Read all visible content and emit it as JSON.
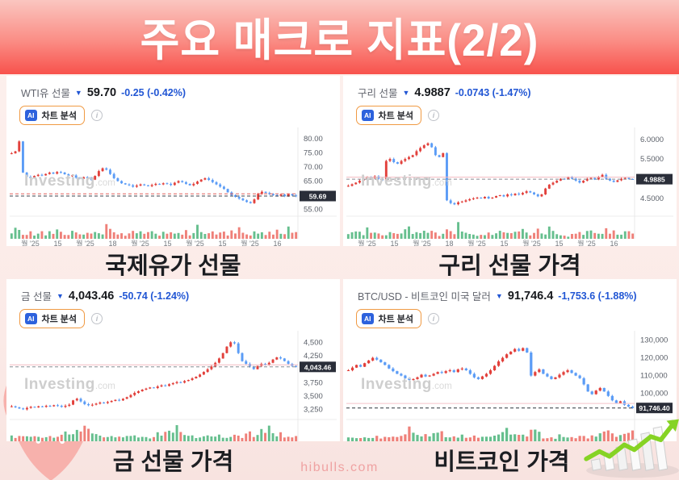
{
  "page": {
    "title": "주요 매크로 지표(2/2)",
    "site": "hibulls.com",
    "watermark": "Investing",
    "watermark_suffix": ".com"
  },
  "icons": {
    "down_arrow": "▼",
    "info": "i"
  },
  "ai": {
    "badge": "AI",
    "label": "차트 분석"
  },
  "colors": {
    "header_gradient_top": "#fac6c0",
    "header_gradient_bottom": "#f8524c",
    "candle_up": "#e2413c",
    "candle_down": "#5b9cf6",
    "vol_up": "#66bf8e",
    "vol_down": "#ef8079",
    "change_negative": "#2156d4",
    "ai_border": "#f09a43",
    "ai_badge_bg": "#2d62dd",
    "badge_bg": "#2a2e39",
    "brand_pink": "#efa2a2"
  },
  "chart_data": [
    {
      "type": "candlestick",
      "symbol": "WTI유 선물",
      "price": "59.70",
      "change": "-0.25 (-0.42%)",
      "caption": "국제유가 선물",
      "ylim": [
        54,
        82.5
      ],
      "y_ticks": [
        {
          "v": 80,
          "label": "80.00"
        },
        {
          "v": 75,
          "label": "75.00"
        },
        {
          "v": 70,
          "label": "70.00"
        },
        {
          "v": 65,
          "label": "65.00"
        },
        {
          "v": 55,
          "label": "55.00"
        }
      ],
      "last_value": 59.69,
      "last_label": "59.69",
      "last_line_color": "#3c414b",
      "lines": [
        {
          "v": 60.5,
          "color": "#e2625f",
          "dash": true
        }
      ],
      "closes": [
        74.8,
        75.5,
        79.0,
        68.0,
        66.5,
        66.0,
        66.8,
        67.2,
        67.0,
        67.5,
        68.0,
        67.6,
        68.2,
        68.0,
        67.4,
        66.8,
        67.0,
        66.2,
        65.8,
        66.4,
        66.0,
        65.5,
        66.8,
        68.5,
        69.5,
        69.0,
        67.5,
        66.0,
        65.0,
        64.2,
        63.8,
        63.5,
        63.0,
        63.4,
        63.8,
        63.5,
        63.2,
        63.6,
        64.0,
        63.8,
        64.2,
        64.0,
        63.6,
        64.4,
        65.0,
        64.6,
        64.0,
        63.5,
        64.0,
        64.8,
        65.5,
        66.0,
        65.4,
        64.6,
        63.8,
        63.0,
        62.2,
        61.0,
        60.0,
        59.4,
        58.8,
        58.2,
        57.6,
        57.2,
        58.5,
        60.5,
        61.2,
        60.8,
        60.4,
        60.0,
        59.8,
        60.2,
        59.6,
        60.4,
        59.9,
        59.7
      ],
      "volume_profile": [
        0.3,
        0.95,
        0.55,
        0.35,
        0.3,
        0.4,
        0.28,
        0.33,
        0.45,
        0.3,
        0.5,
        0.38,
        0.6,
        0.42,
        0.3,
        0.25,
        0.48,
        0.35,
        0.35,
        0.35,
        0.4,
        0.3,
        0.55,
        0.3
      ],
      "x_labels": [
        "월 '25",
        "15",
        "월 '25",
        "18",
        "월 '25",
        "15",
        "월 '25",
        "15",
        "월 '25",
        "16"
      ],
      "seed": 3
    },
    {
      "type": "candlestick",
      "symbol": "구리 선물",
      "price": "4.9887",
      "change": "-0.0743 (-1.47%)",
      "caption": "구리 선물 가격",
      "ylim": [
        4.15,
        6.2
      ],
      "y_ticks": [
        {
          "v": 6.0,
          "label": "6.0000"
        },
        {
          "v": 5.5,
          "label": "5.5000"
        },
        {
          "v": 4.5,
          "label": "4.5000"
        }
      ],
      "last_value": 4.9885,
      "last_label": "4.9885",
      "last_line_color": "#868b92",
      "lines": [
        {
          "v": 5.04,
          "color": "#f2b9c0",
          "dash": false
        }
      ],
      "closes": [
        4.82,
        4.86,
        4.9,
        4.95,
        5.0,
        5.05,
        5.02,
        5.06,
        5.0,
        4.96,
        5.45,
        5.5,
        5.42,
        5.38,
        5.45,
        5.5,
        5.55,
        5.6,
        5.7,
        5.78,
        5.85,
        5.9,
        5.8,
        5.6,
        5.55,
        5.65,
        4.45,
        4.38,
        4.35,
        4.4,
        4.42,
        4.45,
        4.48,
        4.5,
        4.52,
        4.5,
        4.54,
        4.5,
        4.52,
        4.56,
        4.58,
        4.55,
        4.6,
        4.58,
        4.62,
        4.6,
        4.64,
        4.68,
        4.65,
        4.6,
        4.55,
        4.6,
        4.75,
        4.85,
        4.9,
        4.95,
        5.0,
        4.98,
        5.05,
        5.0,
        4.95,
        4.9,
        4.95,
        5.0,
        5.02,
        4.98,
        5.05,
        5.1,
        5.0,
        4.95,
        4.92,
        4.96,
        5.0,
        5.02,
        4.99,
        4.9885
      ],
      "volume_profile": [
        0.25,
        0.45,
        0.65,
        0.4,
        0.3,
        0.95,
        0.5,
        0.35,
        0.3,
        0.25,
        0.2,
        0.35,
        0.3,
        0.4,
        0.3,
        0.5,
        0.7,
        0.45,
        0.35,
        0.3,
        0.55,
        0.4,
        0.6,
        0.35
      ],
      "x_labels": [
        "월 '25",
        "15",
        "월 '25",
        "18",
        "월 '25",
        "15",
        "월 '25",
        "15",
        "월 '25",
        "16"
      ],
      "seed": 7
    },
    {
      "type": "candlestick",
      "symbol": "금 선물",
      "price": "4,043.46",
      "change": "-50.74 (-1.24%)",
      "caption": "금 선물 가격",
      "ylim": [
        3140,
        4640
      ],
      "y_ticks": [
        {
          "v": 4500,
          "label": "4,500"
        },
        {
          "v": 4250,
          "label": "4,250"
        },
        {
          "v": 3750,
          "label": "3,750"
        },
        {
          "v": 3500,
          "label": "3,500"
        },
        {
          "v": 3250,
          "label": "3,250"
        }
      ],
      "last_value": 4043.46,
      "last_label": "4,043.46",
      "last_line_color": "#868b92",
      "lines": [
        {
          "v": 4080,
          "color": "#f2b9c0",
          "dash": false
        }
      ],
      "closes": [
        3310,
        3290,
        3270,
        3255,
        3280,
        3300,
        3290,
        3310,
        3300,
        3320,
        3310,
        3330,
        3320,
        3300,
        3320,
        3340,
        3420,
        3450,
        3400,
        3350,
        3330,
        3340,
        3360,
        3380,
        3370,
        3390,
        3410,
        3430,
        3420,
        3450,
        3480,
        3520,
        3560,
        3590,
        3620,
        3640,
        3660,
        3650,
        3680,
        3700,
        3690,
        3720,
        3740,
        3760,
        3750,
        3780,
        3800,
        3830,
        3860,
        3900,
        3950,
        4000,
        4050,
        4120,
        4200,
        4300,
        4420,
        4500,
        4480,
        4300,
        4150,
        4100,
        4050,
        4000,
        4060,
        4100,
        4080,
        4120,
        4180,
        4220,
        4200,
        4150,
        4100,
        4060,
        4043.46
      ],
      "volume_profile": [
        0.35,
        0.3,
        0.45,
        0.4,
        0.3,
        0.35,
        0.5,
        0.4,
        0.35,
        0.3,
        0.4,
        0.35,
        0.3,
        0.45,
        0.55,
        0.4,
        0.65,
        0.75,
        0.6,
        0.95,
        0.7,
        0.45,
        0.55,
        0.4
      ],
      "x_labels": [
        "월 '25",
        "15",
        "월 '25",
        "18",
        "월 '25",
        "15",
        "월 '25",
        "15",
        "월 '25",
        "16"
      ],
      "seed": 11
    },
    {
      "type": "candlestick",
      "symbol": "BTC/USD - 비트코인 미국 달러",
      "price": "91,746.4",
      "change": "-1,753.6 (-1.88%)",
      "caption": "비트코인 가격",
      "ylim": [
        87500,
        133000
      ],
      "y_ticks": [
        {
          "v": 130000,
          "label": "130,000"
        },
        {
          "v": 120000,
          "label": "120,000"
        },
        {
          "v": 110000,
          "label": "110,000"
        },
        {
          "v": 100000,
          "label": "100,000"
        }
      ],
      "last_value": 91746.4,
      "last_label": "91,746.40",
      "last_line_color": "#2e333c",
      "lines": [
        {
          "v": 94300,
          "color": "#f4c3c9",
          "dash": false
        }
      ],
      "closes": [
        113000,
        114500,
        116000,
        115000,
        117000,
        118500,
        120000,
        119000,
        117500,
        116000,
        114000,
        112500,
        111000,
        110000,
        108500,
        107500,
        108000,
        109000,
        110500,
        109500,
        110000,
        111000,
        112000,
        111500,
        112500,
        113000,
        112000,
        113500,
        114000,
        113000,
        111000,
        109000,
        108000,
        109500,
        111000,
        113000,
        115500,
        118000,
        120000,
        122000,
        123500,
        125000,
        124000,
        125500,
        123000,
        110000,
        112000,
        113500,
        111000,
        109500,
        108000,
        109000,
        110500,
        112000,
        113000,
        111500,
        110000,
        108500,
        105000,
        101000,
        99500,
        101500,
        103000,
        101000,
        98500,
        96000,
        94500,
        95500,
        93500,
        92500,
        91746.4
      ],
      "volume_profile": [
        0.3,
        0.25,
        0.35,
        0.3,
        0.4,
        0.3,
        0.25,
        0.35,
        0.3,
        0.4,
        0.35,
        0.3,
        0.45,
        0.4,
        0.55,
        0.95,
        0.65,
        0.5,
        0.4,
        0.55,
        0.45,
        0.65,
        0.75,
        0.6
      ],
      "x_labels": [
        "'25",
        "17",
        "월 '25",
        "14",
        "월 '25",
        "12",
        "월 '25",
        "16"
      ],
      "seed": 17
    }
  ]
}
